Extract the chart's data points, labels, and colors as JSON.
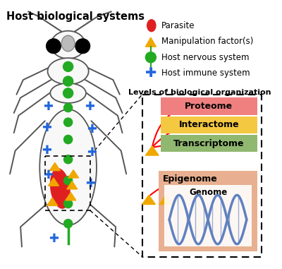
{
  "title": "Host biological systems",
  "legend_items": [
    {
      "label": "Parasite",
      "color": "#e02020",
      "shape": "ellipse"
    },
    {
      "label": "Manipulation factor(s)",
      "color": "#f0a800",
      "shape": "triangle"
    },
    {
      "label": "Host nervous system",
      "color": "#22aa22",
      "shape": "circle"
    },
    {
      "label": "Host immune system",
      "color": "#2266dd",
      "shape": "plus"
    }
  ],
  "bio_org_title": "Levels of biological organization",
  "levels": [
    {
      "label": "Proteome",
      "color": "#f08080"
    },
    {
      "label": "Interactome",
      "color": "#f5c842"
    },
    {
      "label": "Transcriptome",
      "color": "#90b870"
    }
  ],
  "genome_bg": "#e8b090",
  "genome_label": "Epigenome",
  "genome_sublabel": "Genome",
  "dna_color": "#6080c0",
  "bg_color": "#ffffff",
  "insect_color": "#f8f8f8",
  "insect_edge": "#555555",
  "nerve_color": "#22aa22",
  "parasite_color": "#e02020",
  "manip_color": "#f0a800",
  "immune_color": "#2266dd"
}
